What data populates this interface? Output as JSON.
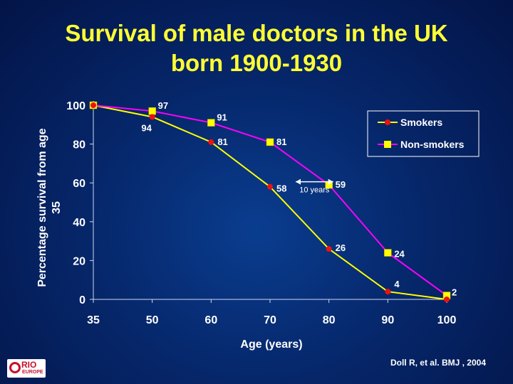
{
  "slide": {
    "title_line1": "Survival of male doctors in the UK",
    "title_line2": "born 1900-1930",
    "source": "Doll R, et al. BMJ , 2004",
    "logo_text": "RIO",
    "logo_subtext": "EUROPE"
  },
  "chart_data": {
    "type": "line",
    "title": "Survival of male doctors in the UK born 1900-1930",
    "xlabel": "Age (years)",
    "ylabel_lines": [
      "Percentage survival from age",
      "35"
    ],
    "x": [
      35,
      50,
      60,
      70,
      80,
      90,
      100
    ],
    "x_ticks": [
      "35",
      "50",
      "60",
      "70",
      "80",
      "90",
      "100"
    ],
    "y_ticks": [
      0,
      20,
      40,
      60,
      80,
      100
    ],
    "ylim": [
      0,
      100
    ],
    "legend_position": "top-right",
    "series": [
      {
        "name": "Smokers",
        "color": "#ffff00",
        "marker": "circle",
        "marker_color": "#ee1111",
        "values": [
          100,
          94,
          81,
          58,
          26,
          4,
          0
        ],
        "labels": [
          "",
          "94",
          "81",
          "58",
          "26",
          "4",
          ""
        ]
      },
      {
        "name": "Non-smokers",
        "color": "#ff00ff",
        "marker": "square",
        "marker_color": "#ffff00",
        "values": [
          100,
          97,
          91,
          81,
          59,
          24,
          2
        ],
        "labels": [
          "",
          "97",
          "91",
          "81",
          "59",
          "24",
          "2"
        ]
      }
    ],
    "annotation": {
      "text": "10 years",
      "at_value": 58,
      "from_x": 70,
      "to_x": 80
    }
  }
}
